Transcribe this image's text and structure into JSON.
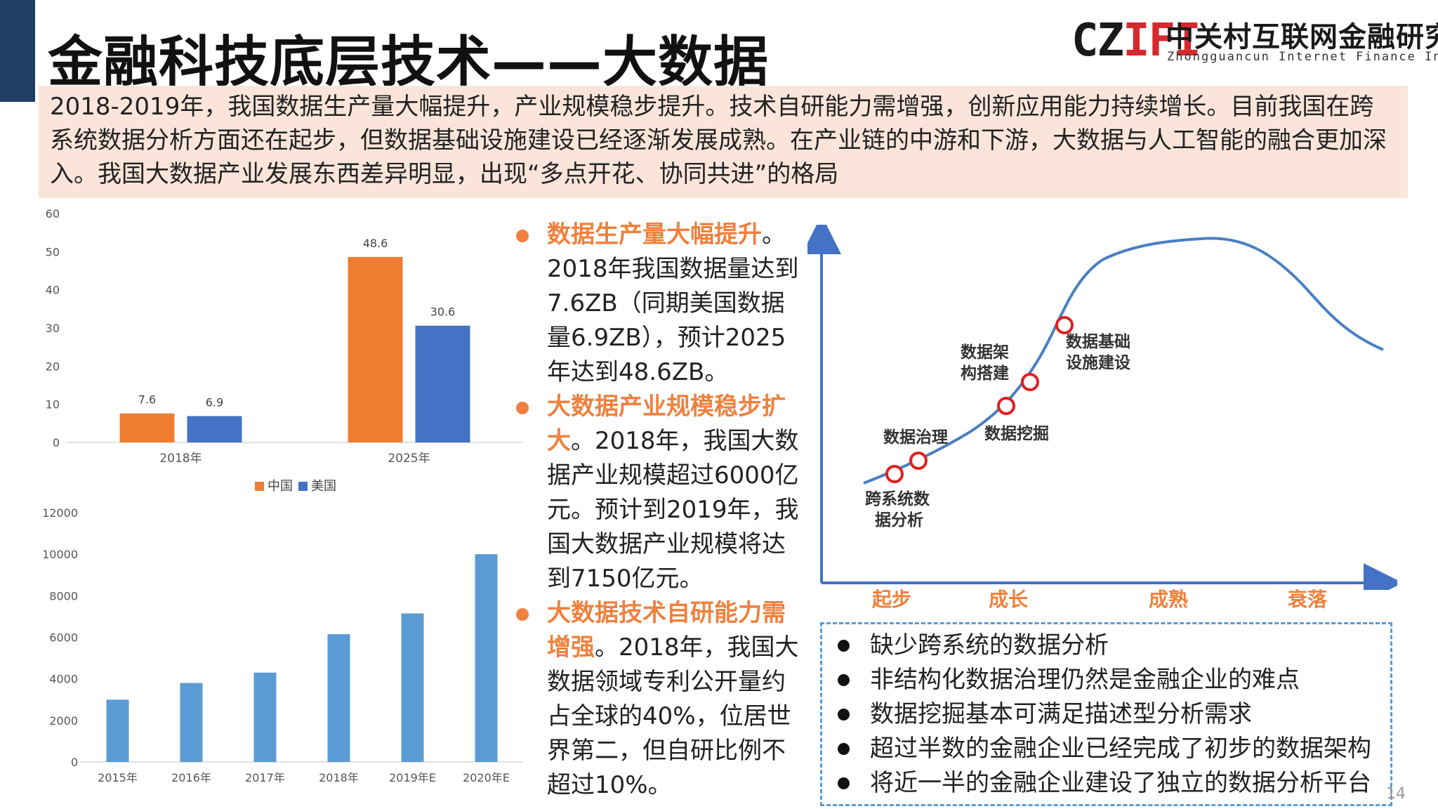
{
  "title": "金融科技底层技术——大数据",
  "logo": {
    "mark_left": "CZ",
    "mark_right": "IFI",
    "name_cn": "中关村互联网金融研究院",
    "name_en": "Zhongguancun Internet Finance Institute"
  },
  "intro": "2018-2019年，我国数据生产量大幅提升，产业规模稳步提升。技术自研能力需增强，创新应用能力持续增长。目前我国在跨系统数据分析方面还在起步，但数据基础设施建设已经逐渐发展成熟。在产业链的中游和下游，大数据与人工智能的融合更加深入。我国大数据产业发展东西差异明显，出现“多点开花、协同共进”的格局",
  "bullets": [
    {
      "highlight": "数据生产量大幅提升",
      "text": "。2018年我国数据量达到7.6ZB（同期美国数据量6.9ZB），预计2025年达到48.6ZB。"
    },
    {
      "highlight": "大数据产业规模稳步扩大",
      "text": "。2018年，我国大数据产业规模超过6000亿元。预计到2019年，我国大数据产业规模将达到7150亿元。"
    },
    {
      "highlight": "大数据技术自研能力需增强",
      "text": "。2018年，我国大数据领域专利公开量约占全球的40%，位居世界第二，但自研比例不超过10%。"
    }
  ],
  "stages": {
    "axis_labels": [
      "起步",
      "成长",
      "成熟",
      "衰落"
    ],
    "points": [
      {
        "label": "跨系统数据分析",
        "lines": [
          "跨系统数",
          "据分析"
        ]
      },
      {
        "label": "数据治理",
        "lines": [
          "数据治理"
        ]
      },
      {
        "label": "数据挖掘",
        "lines": [
          "数据挖掘"
        ]
      },
      {
        "label": "数据架构搭建",
        "lines": [
          "数据架",
          "构搭建"
        ]
      },
      {
        "label": "数据基础设施建设",
        "lines": [
          "数据基础",
          "设施建设"
        ]
      }
    ]
  },
  "issues": [
    "缺少跨系统的数据分析",
    "非结构化数据治理仍然是金融企业的难点",
    "数据挖掘基本可满足描述型分析需求",
    "超过半数的金融企业已经完成了初步的数据架构",
    "将近一半的金融企业建设了独立的数据分析平台"
  ],
  "page_number": "14",
  "colors": {
    "china": "#ed7d31",
    "usa": "#4472c4",
    "market": "#5b9bd5",
    "accent": "#f0803c",
    "sidebar": "#1f3e64"
  },
  "chart_data": [
    {
      "type": "bar",
      "title": "",
      "categories": [
        "2018年",
        "2025年"
      ],
      "series": [
        {
          "name": "中国",
          "values": [
            7.6,
            48.6
          ]
        },
        {
          "name": "美国",
          "values": [
            6.9,
            30.6
          ]
        }
      ],
      "ylim": [
        0,
        60
      ],
      "yticks": [
        0,
        10,
        20,
        30,
        40,
        50,
        60
      ],
      "legend": "bottom",
      "data_labels": true,
      "grid": false
    },
    {
      "type": "bar",
      "title": "",
      "categories": [
        "2015年",
        "2016年",
        "2017年",
        "2018年",
        "2019年E",
        "2020年E"
      ],
      "values": [
        3000,
        3800,
        4300,
        6150,
        7150,
        10000
      ],
      "ylim": [
        0,
        12000
      ],
      "yticks": [
        0,
        2000,
        4000,
        6000,
        8000,
        10000,
        12000
      ],
      "grid": false
    }
  ]
}
